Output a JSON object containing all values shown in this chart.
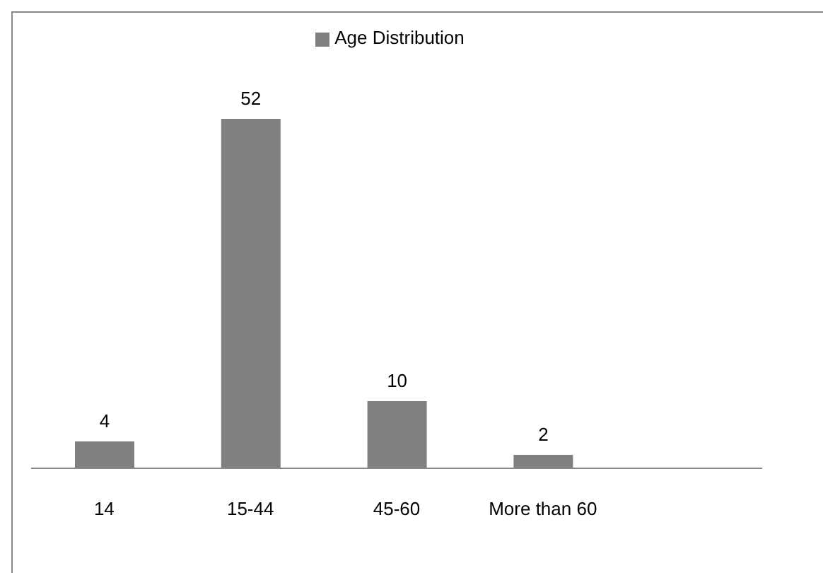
{
  "chart_data": {
    "type": "bar",
    "categories": [
      "14",
      "15-44",
      "45-60",
      "More than 60",
      null
    ],
    "series": [
      {
        "name": "Age Distribution",
        "color": "#808080",
        "values": [
          4,
          52,
          10,
          2,
          null
        ]
      }
    ],
    "data_labels": true,
    "legend": "top",
    "grid": false
  }
}
